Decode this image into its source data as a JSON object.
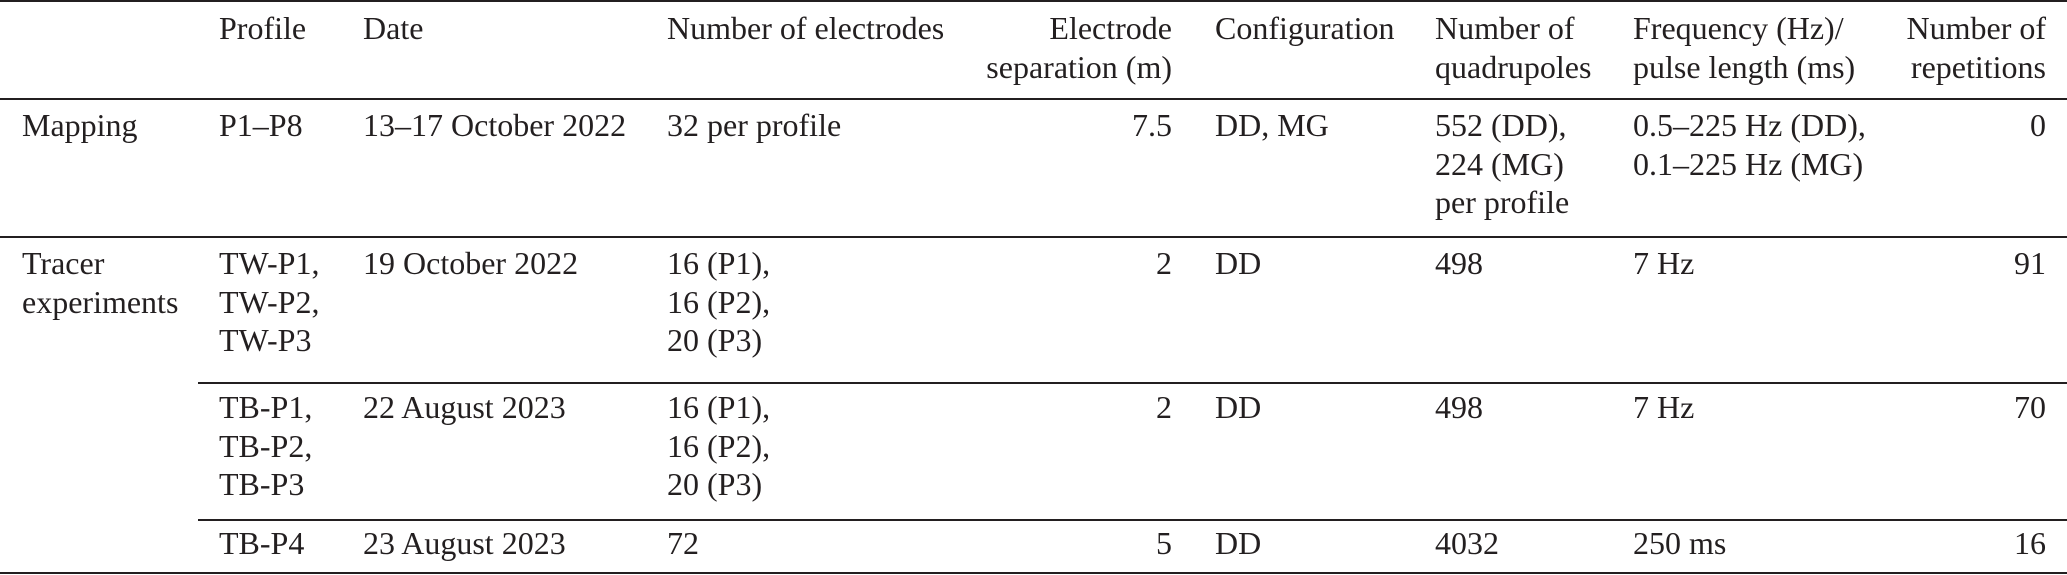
{
  "table": {
    "headers": {
      "category": "",
      "profile": "Profile",
      "date": "Date",
      "electrodes": "Number of electrodes",
      "separation": "Electrode\nseparation (m)",
      "configuration": "Configuration",
      "quadrupoles": "Number of\nquadrupoles",
      "frequency": "Frequency (Hz)/\npulse length (ms)",
      "repetitions": "Number of\nrepetitions"
    },
    "rows": [
      {
        "category": "Mapping",
        "profile": "P1–P8",
        "date": "13–17 October 2022",
        "electrodes": "32 per profile",
        "separation": "7.5",
        "configuration": "DD, MG",
        "quadrupoles": "552 (DD),\n224 (MG)\nper profile",
        "frequency": "0.5–225 Hz (DD),\n0.1–225 Hz (MG)",
        "repetitions": "0"
      },
      {
        "category": "Tracer\nexperiments",
        "profile": "TW-P1,\nTW-P2,\nTW-P3",
        "date": "19 October 2022",
        "electrodes": "16 (P1),\n16 (P2),\n20 (P3)",
        "separation": "2",
        "configuration": "DD",
        "quadrupoles": "498",
        "frequency": "7 Hz",
        "repetitions": "91"
      },
      {
        "category": "",
        "profile": "TB-P1,\nTB-P2,\nTB-P3",
        "date": "22 August 2023",
        "electrodes": "16 (P1),\n16 (P2),\n20 (P3)",
        "separation": "2",
        "configuration": "DD",
        "quadrupoles": "498",
        "frequency": "7 Hz",
        "repetitions": "70"
      },
      {
        "category": "",
        "profile": "TB-P4",
        "date": "23 August 2023",
        "electrodes": "72",
        "separation": "5",
        "configuration": "DD",
        "quadrupoles": "4032",
        "frequency": "250 ms",
        "repetitions": "16"
      }
    ]
  }
}
